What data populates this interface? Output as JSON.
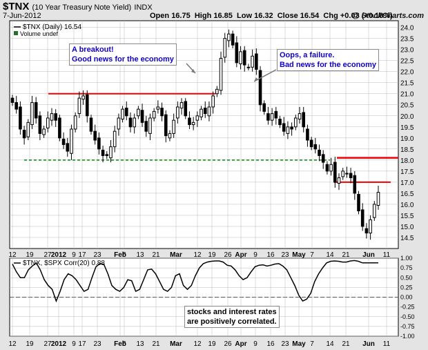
{
  "header": {
    "symbol": "$TNX",
    "description": "(10 Year Treasury Note Yield)",
    "exchange": "INDX",
    "date": "7-Jun-2012",
    "open_label": "Open",
    "open": "16.75",
    "high_label": "High",
    "high": "16.85",
    "low_label": "Low",
    "low": "16.32",
    "close_label": "Close",
    "close": "16.54",
    "chg_label": "Chg",
    "chg": "+0.03 (+0.18%)",
    "brand": "@ StockCharts.com"
  },
  "colors": {
    "candle": "#000000",
    "resistance_line": "#ee0000",
    "support_line": "#008800",
    "annotation_text": "#1000cc",
    "grid": "#b8b8b8"
  },
  "chart_data": [
    {
      "type": "candlestick",
      "legend": [
        "$TNX (Daily) 16.54",
        "Volume undef"
      ],
      "ylim": [
        14.0,
        24.3
      ],
      "yticks": [
        14.5,
        15.0,
        15.5,
        16.0,
        16.5,
        17.0,
        17.5,
        18.0,
        18.5,
        19.0,
        19.5,
        20.0,
        20.5,
        21.0,
        21.5,
        22.0,
        22.5,
        23.0,
        23.5,
        24.0
      ],
      "xticks": [
        "12",
        "19",
        "27",
        "2012",
        "9",
        "17",
        "23",
        "Feb",
        "6",
        "13",
        "21",
        "Mar",
        "12",
        "19",
        "26",
        "Apr",
        "9",
        "16",
        "23",
        "May",
        "7",
        "14",
        "21",
        "Jun",
        "11"
      ],
      "approx_daily_closes": [
        20.6,
        20.3,
        19.4,
        19.0,
        19.7,
        20.6,
        19.9,
        19.2,
        19.4,
        19.9,
        20.1,
        19.8,
        19.0,
        18.7,
        18.4,
        19.4,
        20.0,
        20.8,
        20.9,
        20.0,
        19.3,
        18.9,
        18.5,
        18.2,
        18.2,
        18.6,
        19.3,
        19.9,
        20.3,
        20.0,
        19.5,
        19.9,
        20.3,
        19.7,
        19.3,
        19.9,
        20.2,
        20.4,
        20.0,
        19.1,
        19.2,
        19.8,
        20.4,
        20.6,
        20.0,
        19.6,
        19.7,
        20.0,
        20.3,
        20.1,
        20.4,
        20.9,
        21.2,
        22.6,
        23.5,
        23.7,
        23.2,
        22.4,
        22.9,
        22.3,
        22.2,
        22.7,
        22.1,
        20.5,
        20.2,
        19.8,
        20.1,
        19.9,
        19.6,
        19.3,
        19.5,
        19.4,
        19.9,
        20.1,
        19.5,
        18.9,
        18.6,
        18.5,
        18.2,
        17.9,
        17.5,
        17.8,
        17.0,
        17.2,
        17.5,
        17.4,
        17.2,
        16.5,
        15.7,
        15.0,
        14.7,
        15.3,
        16.0,
        16.54
      ],
      "annotations": [
        {
          "id": "breakout",
          "lines": [
            "A breakout!",
            "Good news for the economy"
          ]
        },
        {
          "id": "failure",
          "lines": [
            "Oops, a failure.",
            "Bad news for the economy"
          ]
        }
      ],
      "reference_lines": [
        {
          "kind": "resistance",
          "value": 21.0,
          "color": "#ee0000"
        },
        {
          "kind": "support",
          "value": 18.0,
          "color": "#008800",
          "style": "dashed"
        },
        {
          "kind": "resistance",
          "value": 18.1,
          "color": "#ee0000"
        },
        {
          "kind": "resistance",
          "value": 17.0,
          "color": "#ee0000"
        }
      ]
    },
    {
      "type": "line",
      "legend": "$TNX, $SPX Corr(20) 0.88",
      "ylim": [
        -1.0,
        1.0
      ],
      "yticks": [
        1.0,
        0.75,
        0.5,
        0.25,
        0.0,
        -0.25,
        -0.5,
        -0.75,
        -1.0
      ],
      "ytick_labels": [
        "1.00",
        "0.75",
        "0.50",
        "0.25",
        "0.00",
        "-0.25",
        "-0.50",
        "-0.75",
        "-1.00"
      ],
      "xticks": [
        "12",
        "19",
        "27",
        "2012",
        "9",
        "17",
        "23",
        "Feb",
        "6",
        "13",
        "21",
        "Mar",
        "12",
        "19",
        "26",
        "Apr",
        "9",
        "16",
        "23",
        "May",
        "7",
        "14",
        "21",
        "Jun",
        "11"
      ],
      "values": [
        0.85,
        0.65,
        0.5,
        0.5,
        0.7,
        0.8,
        0.88,
        0.7,
        0.45,
        0.3,
        0.2,
        -0.1,
        0.15,
        0.45,
        0.6,
        0.55,
        0.45,
        0.3,
        0.15,
        0.2,
        0.5,
        0.78,
        0.86,
        0.84,
        0.6,
        0.3,
        0.2,
        0.15,
        0.25,
        0.45,
        0.42,
        0.15,
        0.2,
        0.45,
        0.7,
        0.72,
        0.6,
        0.4,
        0.2,
        0.15,
        0.25,
        0.55,
        0.6,
        0.3,
        0.2,
        0.3,
        0.55,
        0.75,
        0.86,
        0.9,
        0.92,
        0.93,
        0.93,
        0.9,
        0.82,
        0.8,
        0.7,
        0.55,
        0.45,
        0.5,
        0.65,
        0.78,
        0.82,
        0.83,
        0.8,
        0.82,
        0.85,
        0.86,
        0.8,
        0.7,
        0.5,
        0.3,
        0.05,
        -0.1,
        -0.05,
        0.1,
        0.4,
        0.6,
        0.75,
        0.88,
        0.92,
        0.93,
        0.92,
        0.9,
        0.9,
        0.93,
        0.94,
        0.92,
        0.88,
        0.88,
        0.88,
        0.88,
        0.88
      ],
      "reference_line": 0.0,
      "note": [
        "stocks and interest rates",
        "are positively correlated."
      ]
    }
  ]
}
